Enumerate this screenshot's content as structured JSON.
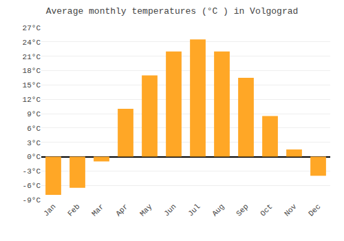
{
  "chart_data": {
    "type": "bar",
    "title": "Average monthly temperatures (°C ) in Volgograd",
    "categories": [
      "Jan",
      "Feb",
      "Mar",
      "Apr",
      "May",
      "Jun",
      "Jul",
      "Aug",
      "Sep",
      "Oct",
      "Nov",
      "Dec"
    ],
    "values": [
      -8,
      -6.5,
      -1,
      10,
      17,
      22,
      24.5,
      22,
      16.5,
      8.5,
      1.5,
      -4
    ],
    "color": "#FFA726",
    "ylim": [
      -9,
      27
    ],
    "yticks": [
      {
        "value": -9,
        "label": "-9°C"
      },
      {
        "value": -6,
        "label": "-6°C"
      },
      {
        "value": -3,
        "label": "-3°C"
      },
      {
        "value": 0,
        "label": "0°C"
      },
      {
        "value": 3,
        "label": "3°C"
      },
      {
        "value": 6,
        "label": "6°C"
      },
      {
        "value": 9,
        "label": "9°C"
      },
      {
        "value": 12,
        "label": "12°C"
      },
      {
        "value": 15,
        "label": "15°C"
      },
      {
        "value": 18,
        "label": "18°C"
      },
      {
        "value": 21,
        "label": "21°C"
      },
      {
        "value": 24,
        "label": "24°C"
      },
      {
        "value": 27,
        "label": "27°C"
      }
    ],
    "grid": true
  }
}
